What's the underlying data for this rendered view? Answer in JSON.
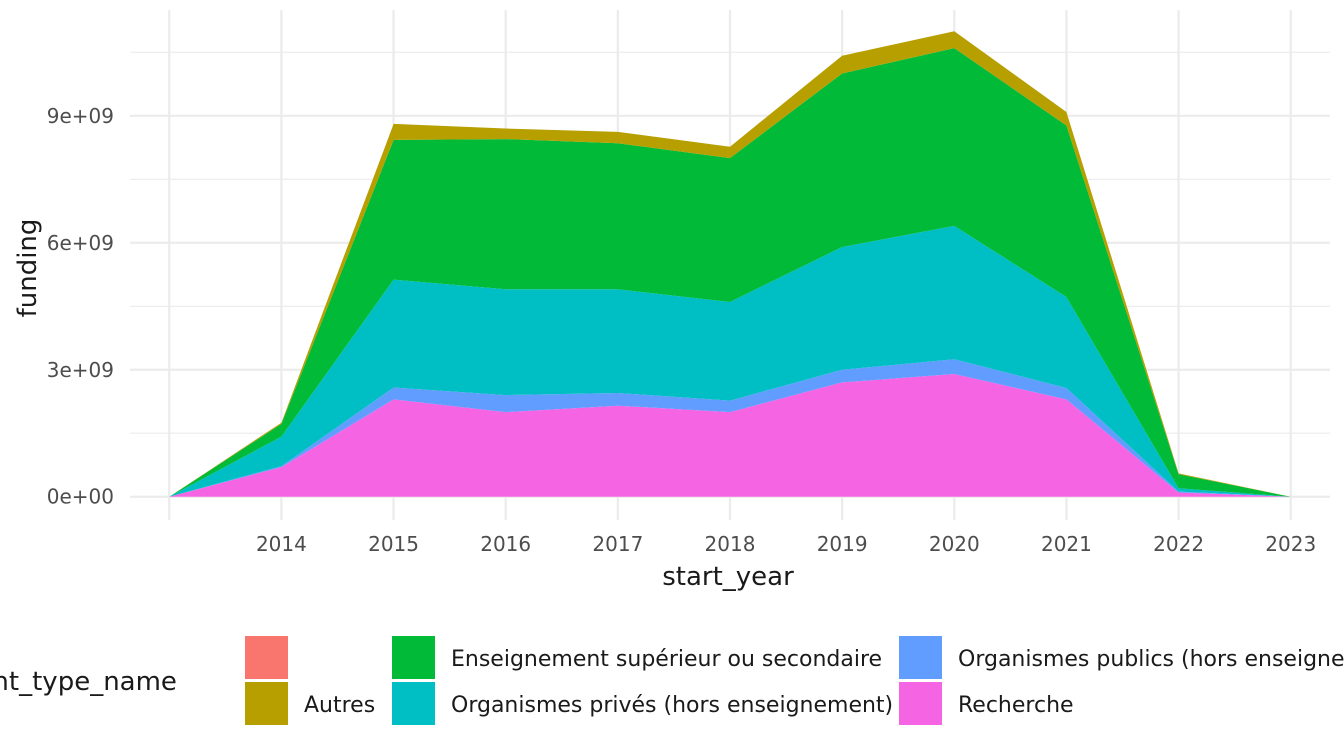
{
  "chart_data": {
    "type": "area",
    "stacked": true,
    "xlabel": "start_year",
    "ylabel": "funding",
    "x": [
      2013,
      2014,
      2015,
      2016,
      2017,
      2018,
      2019,
      2020,
      2021,
      2022,
      2023
    ],
    "x_tick_labels": [
      "2014",
      "2015",
      "2016",
      "2017",
      "2018",
      "2019",
      "2020",
      "2021",
      "2022",
      "2023"
    ],
    "y_ticks": [
      0,
      3000000000,
      6000000000,
      9000000000
    ],
    "y_tick_labels": [
      "0e+00",
      "3e+09",
      "6e+09",
      "9e+09"
    ],
    "xlim": [
      2012.65,
      2023.35
    ],
    "ylim": [
      -550000000,
      11500000000
    ],
    "grid": true,
    "legend_position": "bottom",
    "legend_title": "pant_type_name",
    "series": [
      {
        "name": "Recherche",
        "color": "#F564E3",
        "values": [
          0,
          700000000,
          2300000000,
          2000000000,
          2150000000,
          2000000000,
          2700000000,
          2900000000,
          2300000000,
          100000000,
          0
        ]
      },
      {
        "name": "Organismes publics (hors enseignement)",
        "color": "#619CFF",
        "values": [
          0,
          20000000,
          280000000,
          400000000,
          300000000,
          270000000,
          300000000,
          350000000,
          270000000,
          20000000,
          0
        ]
      },
      {
        "name": "Organismes privés (hors enseignement)",
        "color": "#00BFC4",
        "values": [
          0,
          700000000,
          2550000000,
          2500000000,
          2450000000,
          2330000000,
          2900000000,
          3150000000,
          2150000000,
          80000000,
          0
        ]
      },
      {
        "name": "Enseignement supérieur ou secondaire",
        "color": "#00BA38",
        "values": [
          0,
          300000000,
          3300000000,
          3550000000,
          3450000000,
          3400000000,
          4100000000,
          4200000000,
          4050000000,
          330000000,
          0
        ]
      },
      {
        "name": "Autres",
        "color": "#B79F00",
        "values": [
          0,
          30000000,
          380000000,
          250000000,
          270000000,
          270000000,
          420000000,
          400000000,
          320000000,
          20000000,
          0
        ]
      },
      {
        "name": "",
        "color": "#F8766D",
        "values": [
          0,
          0,
          0,
          0,
          0,
          0,
          0,
          0,
          0,
          0,
          0
        ]
      }
    ],
    "legend_order": [
      {
        "name": "",
        "color": "#F8766D"
      },
      {
        "name": "Autres",
        "color": "#B79F00"
      },
      {
        "name": "Enseignement supérieur ou secondaire",
        "color": "#00BA38"
      },
      {
        "name": "Organismes privés (hors enseignement)",
        "color": "#00BFC4"
      },
      {
        "name": "Organismes publics (hors enseignement)",
        "color": "#619CFF"
      },
      {
        "name": "Recherche",
        "color": "#F564E3"
      }
    ]
  }
}
